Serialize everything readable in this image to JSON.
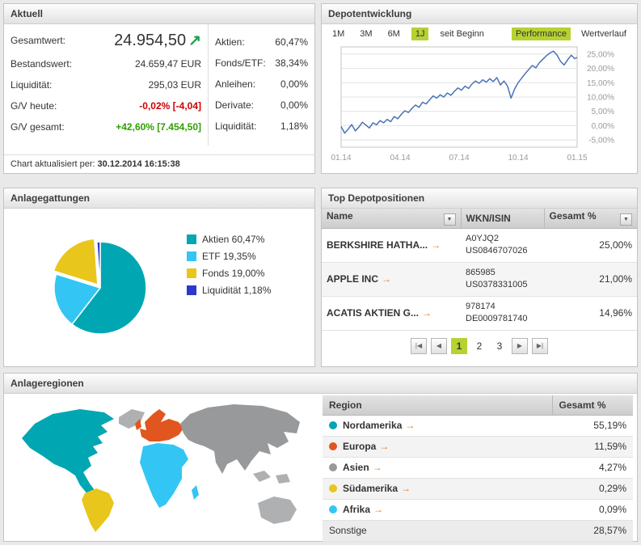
{
  "icons": {
    "trend_up": "↗",
    "link_arrow": "→",
    "sort_down": "▼"
  },
  "aktuell": {
    "title": "Aktuell",
    "gesamtwert_label": "Gesamtwert:",
    "gesamtwert_value": "24.954,50",
    "rows_left": [
      {
        "label": "Bestandswert:",
        "value": "24.659,47 EUR",
        "state": "normal"
      },
      {
        "label": "Liquidität:",
        "value": "295,03 EUR",
        "state": "normal"
      },
      {
        "label": "G/V heute:",
        "value": "-0,02% [-4,04]",
        "state": "negative"
      },
      {
        "label": "G/V gesamt:",
        "value": "+42,60% [7.454,50]",
        "state": "positive"
      }
    ],
    "rows_right": [
      {
        "label": "Aktien:",
        "value": "60,47%"
      },
      {
        "label": "Fonds/ETF:",
        "value": "38,34%"
      },
      {
        "label": "Anleihen:",
        "value": "0,00%"
      },
      {
        "label": "Derivate:",
        "value": "0,00%"
      },
      {
        "label": "Liquidität:",
        "value": "1,18%"
      }
    ],
    "footer_label": "Chart aktualisiert per:",
    "footer_value": "30.12.2014 16:15:38"
  },
  "depotentwicklung": {
    "title": "Depotentwicklung",
    "range_tabs": [
      {
        "label": "1M",
        "active": false
      },
      {
        "label": "3M",
        "active": false
      },
      {
        "label": "6M",
        "active": false
      },
      {
        "label": "1J",
        "active": true
      },
      {
        "label": "seit Beginn",
        "active": false
      }
    ],
    "view_tabs": [
      {
        "label": "Performance",
        "active": true
      },
      {
        "label": "Wertverlauf",
        "active": false
      }
    ]
  },
  "chart_data": [
    {
      "type": "line",
      "title": "Depotentwicklung Performance 1J",
      "xlabel": "",
      "ylabel": "",
      "x_ticks": [
        "01.14",
        "04.14",
        "07.14",
        "10.14",
        "01.15"
      ],
      "y_ticks": [
        "25,00%",
        "20,00%",
        "15,00%",
        "10,00%",
        "5,00%",
        "0,00%",
        "-5,00%"
      ],
      "y_tick_values": [
        25,
        20,
        15,
        10,
        5,
        0,
        -5
      ],
      "ylim": [
        -7.5,
        27.5
      ],
      "grid": true,
      "series": [
        {
          "name": "Performance",
          "color": "#4a72b8",
          "points": [
            [
              0,
              -0.3
            ],
            [
              1.5,
              -2.6
            ],
            [
              3,
              -1.2
            ],
            [
              4.5,
              0.4
            ],
            [
              6,
              -1.8
            ],
            [
              7.5,
              -0.5
            ],
            [
              9,
              1.2
            ],
            [
              10.5,
              0.2
            ],
            [
              12,
              -0.8
            ],
            [
              13.5,
              1.0
            ],
            [
              15,
              0.3
            ],
            [
              16.5,
              1.8
            ],
            [
              18,
              1.0
            ],
            [
              19.5,
              2.2
            ],
            [
              21,
              1.4
            ],
            [
              22.5,
              3.2
            ],
            [
              24,
              2.4
            ],
            [
              25.5,
              4.0
            ],
            [
              27,
              5.2
            ],
            [
              28.5,
              4.6
            ],
            [
              30,
              6.0
            ],
            [
              31.5,
              7.2
            ],
            [
              33,
              6.4
            ],
            [
              34.5,
              8.2
            ],
            [
              36,
              7.6
            ],
            [
              37.5,
              9.0
            ],
            [
              39,
              10.4
            ],
            [
              40.5,
              9.6
            ],
            [
              42,
              10.8
            ],
            [
              43.5,
              10.0
            ],
            [
              45,
              11.4
            ],
            [
              46.5,
              10.6
            ],
            [
              48,
              12.0
            ],
            [
              49.5,
              13.2
            ],
            [
              51,
              12.4
            ],
            [
              52.5,
              13.8
            ],
            [
              54,
              13.0
            ],
            [
              55.5,
              14.6
            ],
            [
              57,
              15.6
            ],
            [
              58.5,
              14.8
            ],
            [
              60,
              16.0
            ],
            [
              61.5,
              15.2
            ],
            [
              63,
              16.4
            ],
            [
              64.5,
              15.4
            ],
            [
              66,
              16.8
            ],
            [
              67.5,
              14.2
            ],
            [
              69,
              15.6
            ],
            [
              70.5,
              13.8
            ],
            [
              72,
              9.6
            ],
            [
              73.5,
              12.8
            ],
            [
              75,
              15.0
            ],
            [
              76.5,
              16.6
            ],
            [
              78,
              18.2
            ],
            [
              79.5,
              19.6
            ],
            [
              81,
              21.0
            ],
            [
              82.5,
              20.2
            ],
            [
              84,
              22.0
            ],
            [
              85.5,
              23.2
            ],
            [
              87,
              24.4
            ],
            [
              88.5,
              25.4
            ],
            [
              90,
              26.0
            ],
            [
              91.5,
              24.6
            ],
            [
              93,
              22.4
            ],
            [
              94.5,
              21.2
            ],
            [
              96,
              23.0
            ],
            [
              97.5,
              24.6
            ],
            [
              99,
              23.4
            ],
            [
              100,
              23.8
            ]
          ]
        }
      ]
    },
    {
      "type": "pie",
      "title": "Anlagegattungen",
      "slices": [
        {
          "label": "Aktien",
          "value": 60.47,
          "color": "#00a7b3",
          "explode": 0
        },
        {
          "label": "ETF",
          "value": 19.35,
          "color": "#33c6f4",
          "explode": 0
        },
        {
          "label": "Fonds",
          "value": 19.0,
          "color": "#e8c61c",
          "explode": 5
        },
        {
          "label": "Liquidität",
          "value": 1.18,
          "color": "#2b39cc",
          "explode": 0
        }
      ]
    }
  ],
  "anlagegattungen": {
    "title": "Anlagegattungen",
    "legend": [
      {
        "label": "Aktien 60,47%",
        "color": "#00a7b3"
      },
      {
        "label": "ETF 19,35%",
        "color": "#33c6f4"
      },
      {
        "label": "Fonds 19,00%",
        "color": "#e8c61c"
      },
      {
        "label": "Liquidität 1,18%",
        "color": "#2b39cc"
      }
    ]
  },
  "top_depotpositionen": {
    "title": "Top Depotpositionen",
    "columns": [
      "Name",
      "WKN/ISIN",
      "Gesamt %"
    ],
    "rows": [
      {
        "name": "BERKSHIRE HATHA...",
        "wkn": "A0YJQ2",
        "isin": "US0846707026",
        "gesamt": "25,00%"
      },
      {
        "name": "APPLE INC",
        "wkn": "865985",
        "isin": "US0378331005",
        "gesamt": "21,00%"
      },
      {
        "name": "ACATIS AKTIEN G...",
        "wkn": "978174",
        "isin": "DE0009781740",
        "gesamt": "14,96%"
      }
    ],
    "pagination": {
      "first": "|◀",
      "prev": "◀",
      "pages": [
        "1",
        "2",
        "3"
      ],
      "active_page": "1",
      "next": "▶",
      "last": "▶|"
    }
  },
  "anlageregionen": {
    "title": "Anlageregionen",
    "columns": [
      "Region",
      "Gesamt %"
    ],
    "rows": [
      {
        "region": "Nordamerika",
        "value": "55,19%",
        "color": "#00a7b3",
        "link": true
      },
      {
        "region": "Europa",
        "value": "11,59%",
        "color": "#e0561e",
        "link": true
      },
      {
        "region": "Asien",
        "value": "4,27%",
        "color": "#98999b",
        "link": true
      },
      {
        "region": "Südamerika",
        "value": "0,29%",
        "color": "#e8c61c",
        "link": true
      },
      {
        "region": "Afrika",
        "value": "0,09%",
        "color": "#33c6f4",
        "link": true
      },
      {
        "region": "Sonstige",
        "value": "28,57%",
        "color": null,
        "link": false
      }
    ],
    "map_colors": {
      "nordamerika": "#00a7b3",
      "suedamerika": "#e8c61c",
      "europa": "#e0561e",
      "afrika": "#33c6f4",
      "asien": "#98999b",
      "sonstige": "#aeb0b2"
    }
  }
}
